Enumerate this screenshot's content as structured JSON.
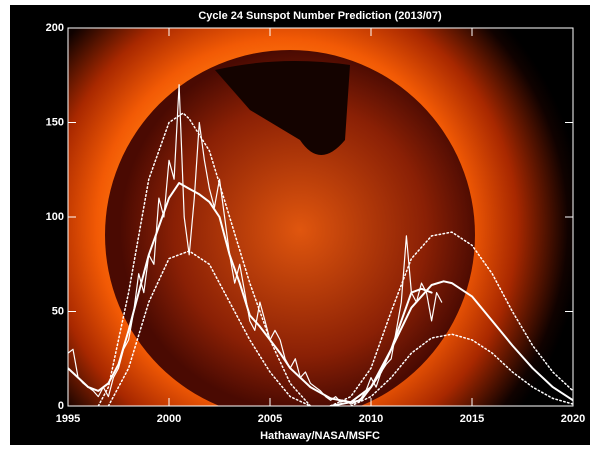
{
  "chart_data": {
    "type": "line",
    "title": "Cycle 24 Sunspot Number Prediction (2013/07)",
    "x_label": "Hathaway/NASA/MSFC",
    "xlim": [
      1995,
      2020
    ],
    "xticks": [
      1995,
      2000,
      2005,
      2010,
      2015,
      2020
    ],
    "ylim": [
      0,
      200
    ],
    "yticks": [
      0,
      50,
      100,
      150,
      200
    ],
    "series": [
      {
        "color": "#ffffff",
        "style": "thin",
        "x": [
          1995,
          1995.25,
          1995.5,
          1995.75,
          1996,
          1996.25,
          1996.5,
          1996.75,
          1997,
          1997.25,
          1997.5,
          1997.75,
          1998,
          1998.25,
          1998.5,
          1998.75,
          1999,
          1999.25,
          1999.5,
          1999.75,
          2000,
          2000.25,
          2000.5,
          2000.75,
          2001,
          2001.25,
          2001.5,
          2001.75,
          2002,
          2002.25,
          2002.5,
          2002.75,
          2003,
          2003.25,
          2003.5,
          2003.75,
          2004,
          2004.25,
          2004.5,
          2004.75,
          2005,
          2005.25,
          2005.5,
          2005.75,
          2006,
          2006.25,
          2006.5,
          2006.75,
          2007,
          2007.25,
          2007.5,
          2007.75,
          2008,
          2008.25,
          2008.5,
          2008.75,
          2009,
          2009.25,
          2009.5,
          2009.75,
          2010,
          2010.25,
          2010.5,
          2010.75,
          2011,
          2011.25,
          2011.5,
          2011.75,
          2012,
          2012.25,
          2012.5,
          2012.75,
          2013,
          2013.25,
          2013.5
        ],
        "values": [
          28,
          30,
          15,
          12,
          10,
          8,
          5,
          10,
          5,
          15,
          20,
          30,
          35,
          50,
          70,
          60,
          80,
          75,
          110,
          100,
          130,
          120,
          170,
          100,
          80,
          110,
          150,
          130,
          115,
          105,
          120,
          100,
          80,
          65,
          75,
          60,
          45,
          40,
          55,
          45,
          35,
          40,
          35,
          25,
          20,
          25,
          15,
          18,
          12,
          10,
          8,
          5,
          3,
          5,
          2,
          3,
          1,
          2,
          4,
          8,
          15,
          10,
          18,
          22,
          25,
          40,
          55,
          90,
          60,
          55,
          65,
          60,
          45,
          60,
          55
        ]
      },
      {
        "color": "#ffffff",
        "style": "solid",
        "x": [
          1995,
          1995.5,
          1996,
          1996.5,
          1997,
          1997.5,
          1998,
          1998.5,
          1999,
          1999.5,
          2000,
          2000.5,
          2001,
          2001.5,
          2002,
          2002.5,
          2003,
          2003.5,
          2004,
          2004.5,
          2005,
          2005.5,
          2006,
          2006.5,
          2007,
          2007.5,
          2008,
          2008.5,
          2009,
          2009.5,
          2010,
          2010.5,
          2011,
          2011.5,
          2012,
          2012.5,
          2013
        ],
        "values": [
          20,
          15,
          10,
          8,
          12,
          22,
          40,
          60,
          80,
          95,
          110,
          118,
          115,
          112,
          108,
          100,
          80,
          65,
          48,
          42,
          35,
          28,
          20,
          15,
          10,
          7,
          4,
          3,
          2,
          3,
          10,
          18,
          30,
          45,
          60,
          62,
          60
        ]
      },
      {
        "color": "#ffffff",
        "style": "dotted",
        "x": [
          1996.5,
          1997,
          1998,
          1999,
          2000,
          2000.7,
          2001,
          2002,
          2003,
          2004,
          2005,
          2006,
          2007
        ],
        "values": [
          0,
          10,
          60,
          120,
          150,
          155,
          152,
          135,
          100,
          65,
          35,
          12,
          0
        ]
      },
      {
        "color": "#ffffff",
        "style": "dotted",
        "x": [
          1997,
          1998,
          1999,
          2000,
          2001,
          2002,
          2003,
          2004,
          2005,
          2006,
          2007
        ],
        "values": [
          0,
          20,
          55,
          78,
          82,
          75,
          55,
          35,
          18,
          5,
          0
        ]
      },
      {
        "color": "#ffffff",
        "style": "solid",
        "x": [
          2008,
          2009,
          2010,
          2011,
          2012,
          2013,
          2013.6,
          2014,
          2015,
          2016,
          2017,
          2018,
          2019,
          2020
        ],
        "values": [
          0,
          2,
          10,
          30,
          52,
          64,
          66,
          65,
          58,
          45,
          32,
          20,
          10,
          3
        ]
      },
      {
        "color": "#ffffff",
        "style": "dotted",
        "x": [
          2008,
          2009,
          2010,
          2011,
          2012,
          2013,
          2014,
          2015,
          2016,
          2017,
          2018,
          2019,
          2020
        ],
        "values": [
          0,
          5,
          20,
          50,
          78,
          90,
          92,
          85,
          70,
          50,
          32,
          18,
          8
        ]
      },
      {
        "color": "#ffffff",
        "style": "dotted",
        "x": [
          2009,
          2010,
          2011,
          2012,
          2013,
          2014,
          2015,
          2016,
          2017,
          2018,
          2019,
          2020
        ],
        "values": [
          0,
          5,
          15,
          28,
          36,
          38,
          35,
          28,
          18,
          10,
          4,
          1
        ]
      }
    ]
  }
}
